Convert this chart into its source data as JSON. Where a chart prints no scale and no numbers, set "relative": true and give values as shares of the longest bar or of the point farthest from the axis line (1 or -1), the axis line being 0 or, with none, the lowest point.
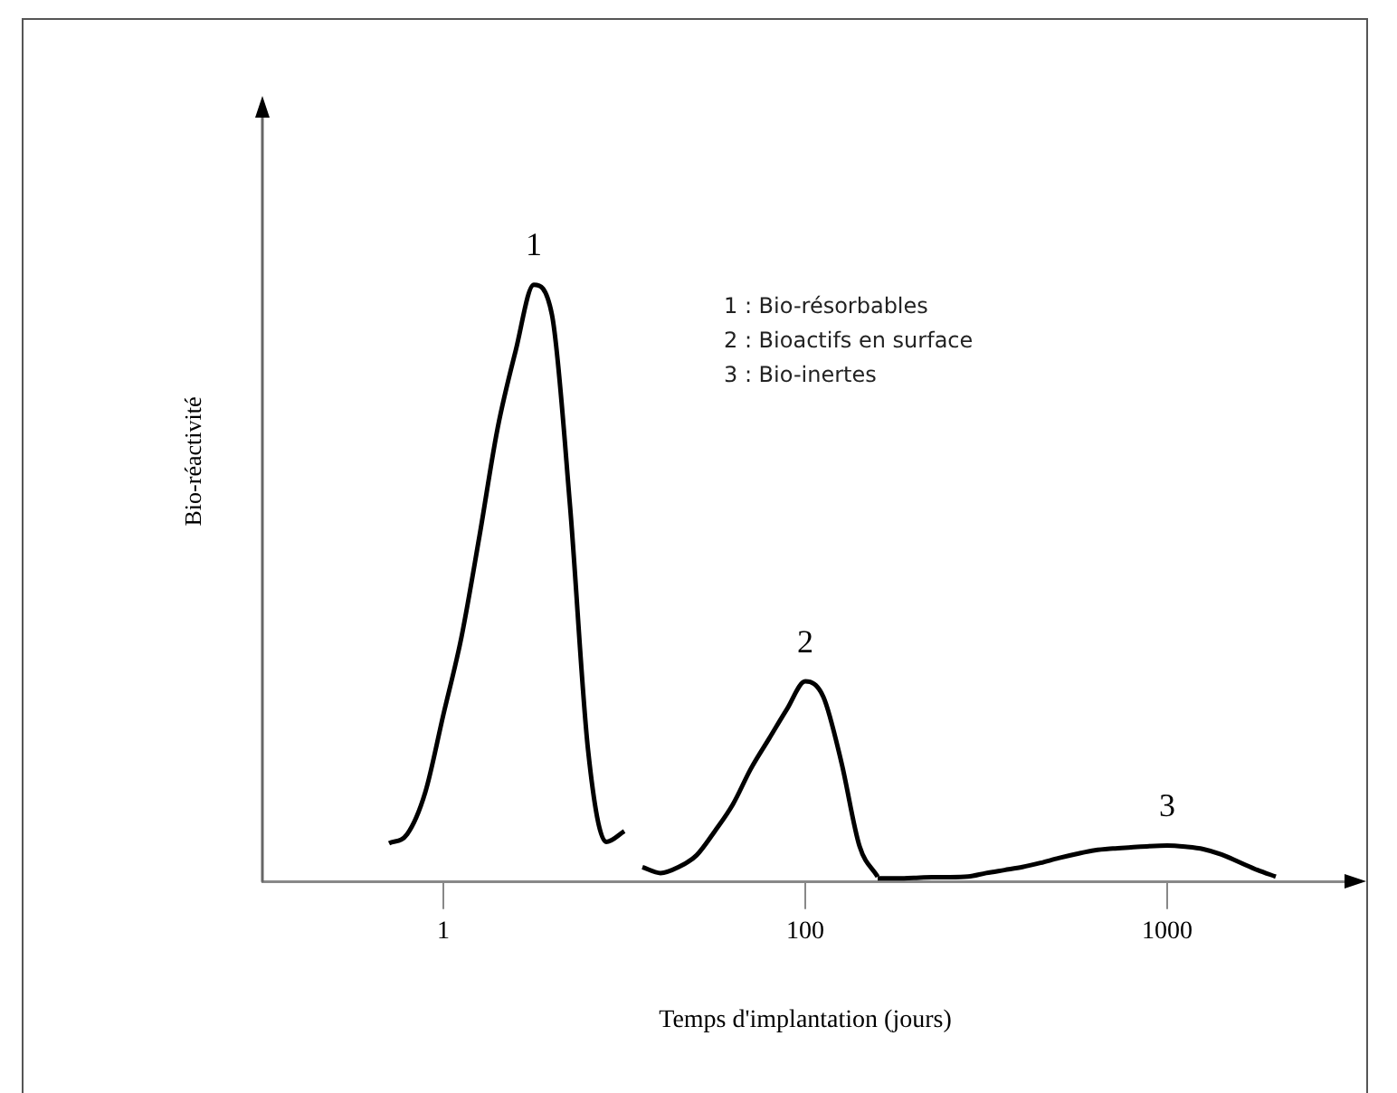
{
  "chart_data": {
    "type": "line",
    "xlabel": "Temps d'implantation (jours)",
    "ylabel": "Bio-réactivité",
    "relative": true,
    "tick_labels": "x",
    "categories": [
      null,
      null,
      null,
      null,
      null,
      null,
      null,
      null,
      null,
      null,
      "1",
      null,
      null,
      null,
      null,
      null,
      null,
      null,
      null,
      null,
      null,
      null,
      null,
      null,
      null,
      null,
      null,
      null,
      null,
      null,
      "100",
      null,
      null,
      null,
      null,
      null,
      null,
      null,
      null,
      null,
      null,
      null,
      null,
      null,
      null,
      null,
      null,
      null,
      null,
      null,
      "1000",
      null,
      null,
      null,
      null,
      null,
      null,
      null,
      null,
      null,
      null
    ],
    "series": [
      {
        "name": "1",
        "color": "#000000",
        "values": [
          null,
          null,
          null,
          null,
          null,
          null,
          null,
          0.065,
          0.08,
          0.15,
          0.28,
          0.41,
          0.58,
          0.76,
          0.89,
          1,
          0.95,
          0.63,
          0.22,
          0.067,
          0.085,
          null,
          null,
          null,
          null,
          null,
          null,
          null,
          null,
          null,
          null,
          null,
          null,
          null,
          null,
          null,
          null,
          null,
          null,
          null,
          null,
          null,
          null,
          null,
          null,
          null,
          null,
          null,
          null,
          null,
          null,
          null,
          null,
          null,
          null,
          null,
          null,
          null,
          null,
          null,
          null
        ]
      },
      {
        "name": "2",
        "color": "#000000",
        "values": [
          null,
          null,
          null,
          null,
          null,
          null,
          null,
          null,
          null,
          null,
          null,
          null,
          null,
          null,
          null,
          null,
          null,
          null,
          null,
          null,
          null,
          0.025,
          0.015,
          0.025,
          0.045,
          0.085,
          0.13,
          0.19,
          0.24,
          0.29,
          0.336,
          0.31,
          0.2,
          0.06,
          0.009,
          null,
          null,
          null,
          null,
          null,
          null,
          null,
          null,
          null,
          null,
          null,
          null,
          null,
          null,
          null,
          null,
          null,
          null,
          null,
          null,
          null,
          null,
          null,
          null,
          null,
          null
        ]
      },
      {
        "name": "3",
        "color": "#000000",
        "values": [
          null,
          null,
          null,
          null,
          null,
          null,
          null,
          null,
          null,
          null,
          null,
          null,
          null,
          null,
          null,
          null,
          null,
          null,
          null,
          null,
          null,
          null,
          null,
          null,
          null,
          null,
          null,
          null,
          null,
          null,
          null,
          null,
          null,
          null,
          0.006,
          0.006,
          0.007,
          0.008,
          0.008,
          0.009,
          0.015,
          0.02,
          0.025,
          0.032,
          0.04,
          0.047,
          0.053,
          0.056,
          0.058,
          0.06,
          0.061,
          0.059,
          0.055,
          0.046,
          0.033,
          0.02,
          0.009,
          null,
          null,
          null,
          null
        ]
      }
    ],
    "annotations": [
      "1 : Bio-résorbables",
      "2 : Bioactifs en surface",
      "3 : Bio-inertes"
    ]
  }
}
